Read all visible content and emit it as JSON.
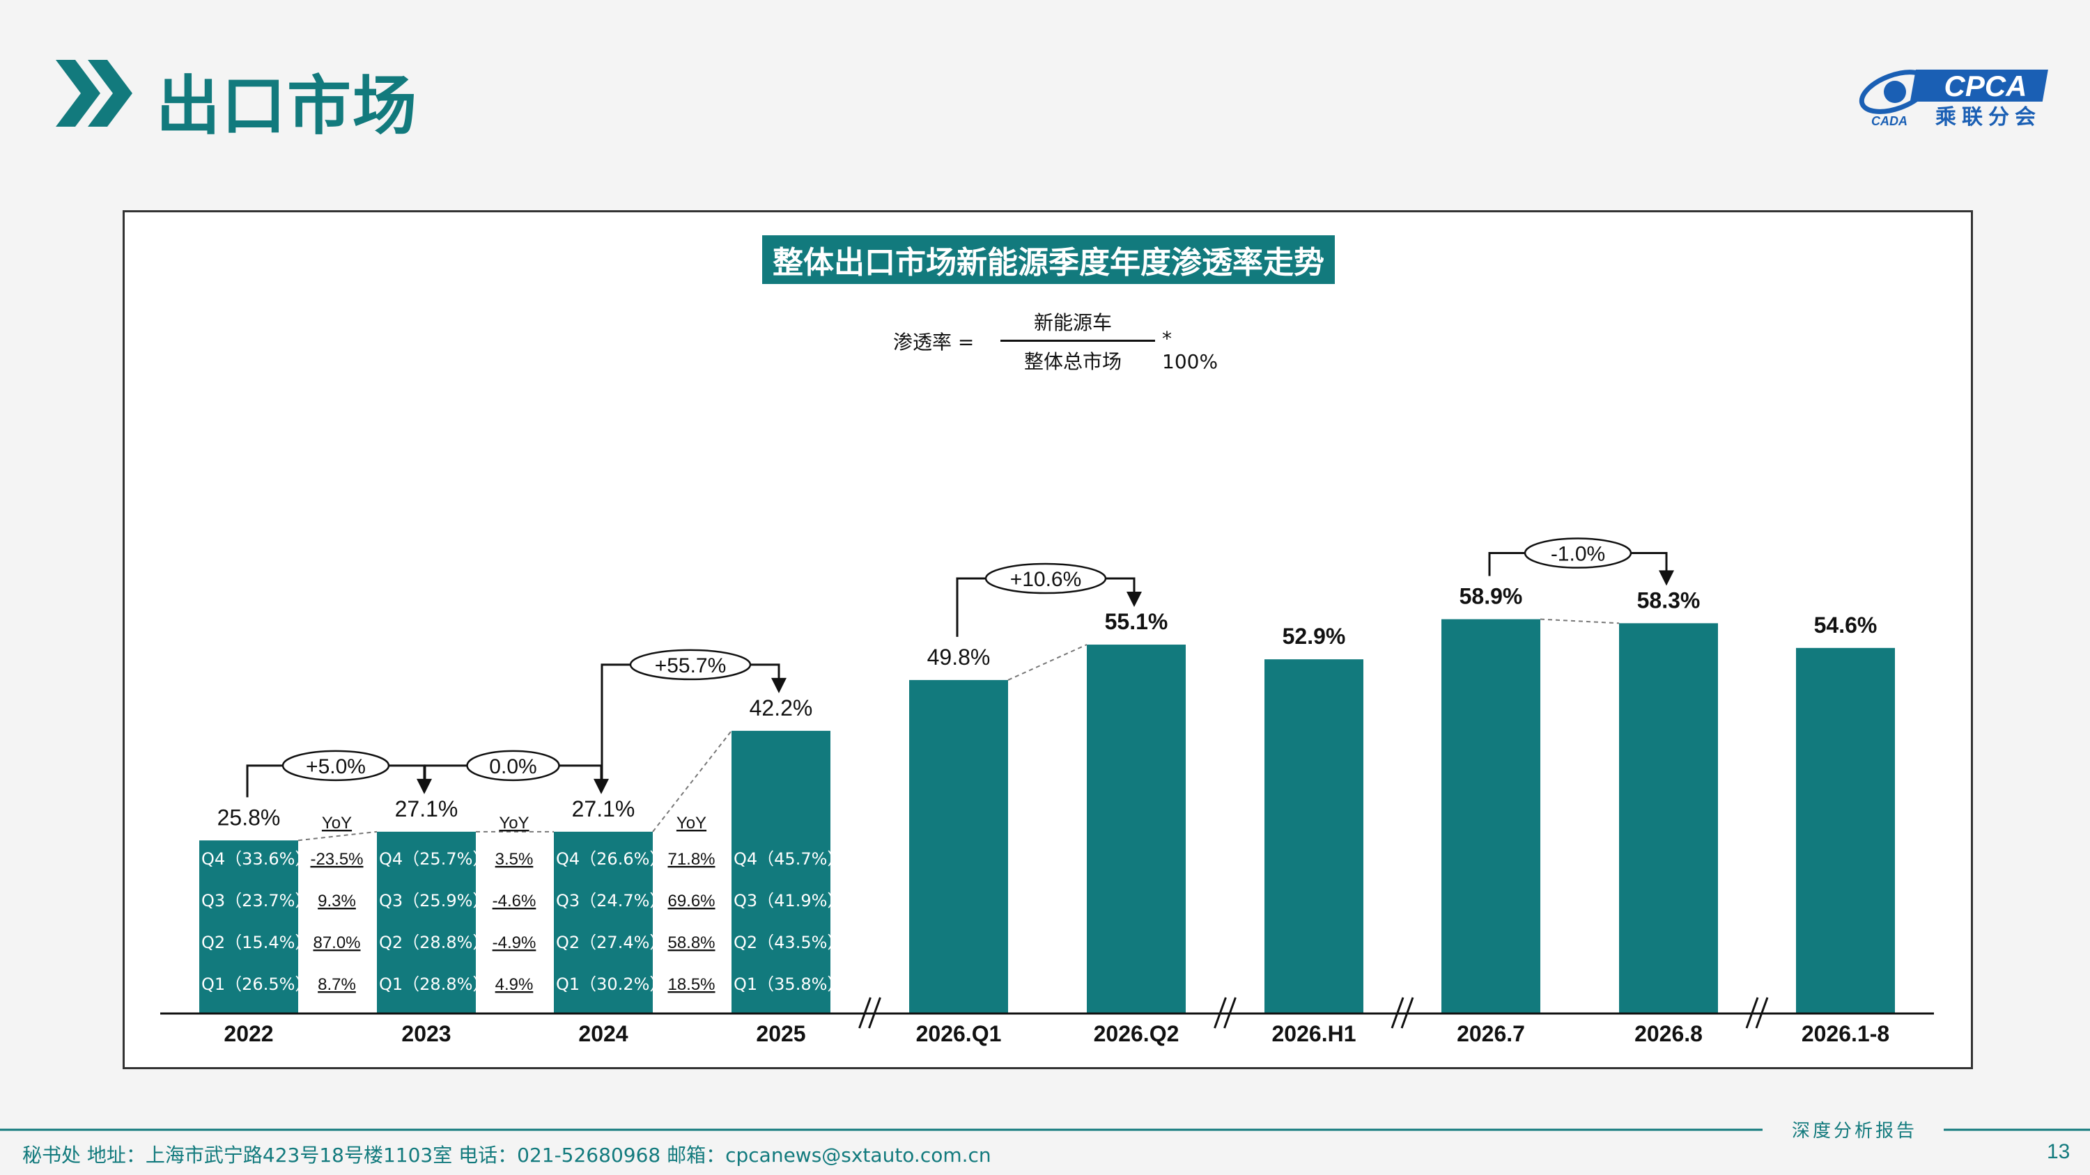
{
  "header": {
    "title": "出口市场",
    "logo": {
      "text_en": "CPCA",
      "text_cn": "乘联分会",
      "emblem_text": "CADA",
      "icon": "cpca-logo-icon"
    }
  },
  "chart_title": "整体出口市场新能源季度年度渗透率走势",
  "formula": {
    "label": "渗透率 =",
    "numerator": "新能源车",
    "denominator": "整体总市场",
    "multiplier": "* 100%"
  },
  "chart_data": {
    "type": "bar",
    "categories": [
      "2022",
      "2023",
      "2024",
      "2025",
      "2026.Q1",
      "2026.Q2",
      "2026.H1",
      "2026.7",
      "2026.8",
      "2026.1-8"
    ],
    "values": [
      25.8,
      27.1,
      27.1,
      42.2,
      49.8,
      55.1,
      52.9,
      58.9,
      58.3,
      54.6
    ],
    "labels": [
      "25.8%",
      "27.1%",
      "27.1%",
      "42.2%",
      "49.8%",
      "55.1%",
      "52.9%",
      "58.9%",
      "58.3%",
      "54.6%"
    ],
    "bold_labels": [
      false,
      false,
      false,
      false,
      false,
      true,
      true,
      true,
      true,
      true
    ],
    "ylim": [
      0,
      70
    ],
    "axis_breaks_after": [
      3,
      5,
      6,
      8
    ],
    "quarterly": [
      [
        "Q4（33.6%）",
        "Q3（23.7%）",
        "Q2（15.4%）",
        "Q1（26.5%）"
      ],
      [
        "Q4（25.7%）",
        "Q3（25.9%）",
        "Q2（28.8%）",
        "Q1（28.8%）"
      ],
      [
        "Q4（26.6%）",
        "Q3（24.7%）",
        "Q2（27.4%）",
        "Q1（30.2%）"
      ],
      [
        "Q4（45.7%）",
        "Q3（41.9%）",
        "Q2（43.5%）",
        "Q1（35.8%）"
      ]
    ],
    "yoy_header": "YoY",
    "yoy": [
      [
        "-23.5%",
        "9.3%",
        "87.0%",
        "8.7%"
      ],
      [
        "3.5%",
        "-4.6%",
        "-4.9%",
        "4.9%"
      ],
      [
        "71.8%",
        "69.6%",
        "58.8%",
        "18.5%"
      ]
    ],
    "changes": [
      {
        "from": 0,
        "to": 1,
        "label": "+5.0%"
      },
      {
        "from": 1,
        "to": 2,
        "label": "0.0%"
      },
      {
        "from": 2,
        "to": 3,
        "label": "+55.7%"
      },
      {
        "from": 4,
        "to": 5,
        "label": "+10.6%"
      },
      {
        "from": 7,
        "to": 8,
        "label": "-1.0%"
      }
    ],
    "bar_color": "#127a7d"
  },
  "footer": {
    "contact": "秘书处   地址：上海市武宁路423号18号楼1103室   电话：021-52680968   邮箱：cpcanews@sxtauto.com.cn",
    "report_label": "深度分析报告",
    "page_number": "13"
  },
  "colors": {
    "accent": "#127a7d",
    "logo_blue": "#1a5fb4"
  }
}
